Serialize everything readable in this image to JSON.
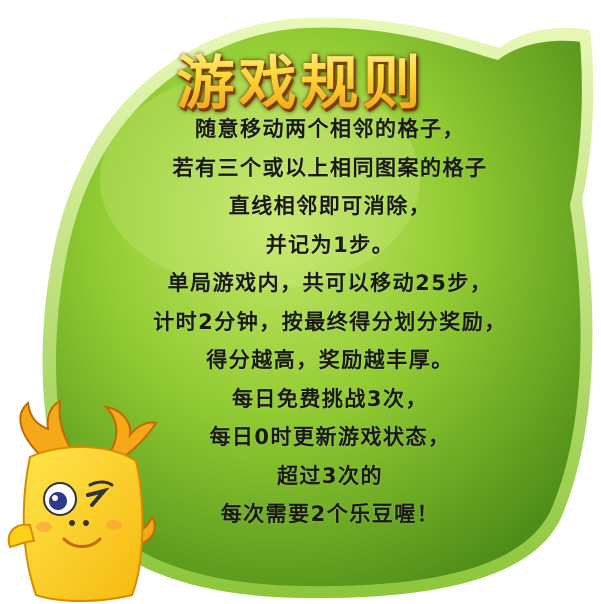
{
  "title": "游戏规则",
  "rules": [
    "随意移动两个相邻的格子，",
    "若有三个或以上相同图案的格子",
    "直线相邻即可消除，",
    "并记为1步。",
    "单局游戏内，共可以移动25步，",
    "计时2分钟，按最终得分划分奖励，",
    "得分越高，奖励越丰厚。",
    "每日免费挑战3次，",
    "每日0时更新游戏状态，",
    "超过3次的",
    "每次需要2个乐豆喔！"
  ],
  "colors": {
    "leaf_light": "#a6d83c",
    "leaf_mid": "#7cbf27",
    "leaf_dark": "#4b8a17",
    "title_gold": "#ffd93a",
    "text": "#1a1a12",
    "mascot_yellow": "#ffd21a",
    "mascot_orange": "#f39a12"
  }
}
